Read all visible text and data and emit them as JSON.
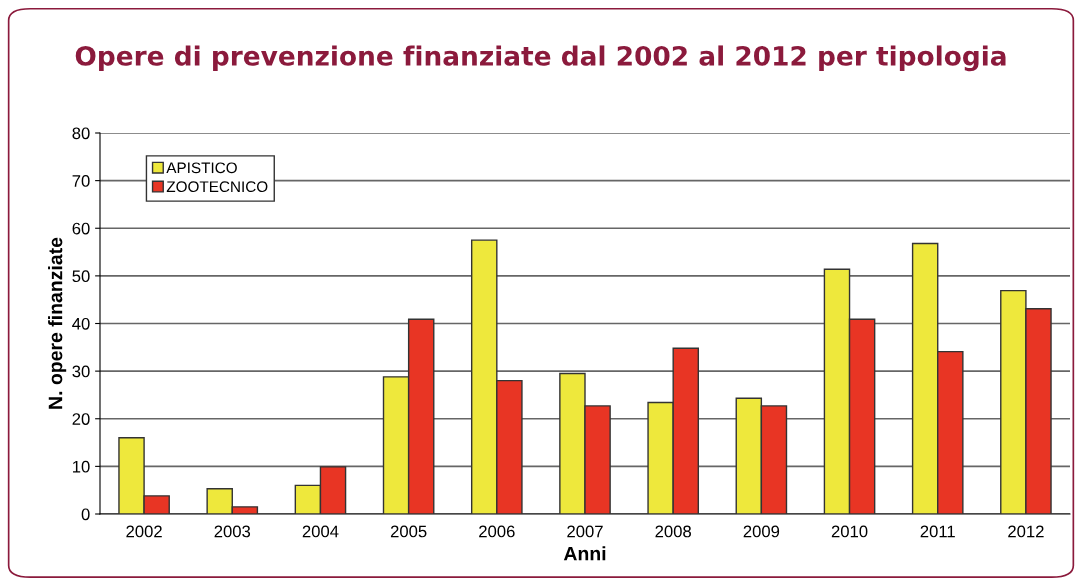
{
  "chart_data": {
    "type": "bar",
    "title": "Opere di prevenzione finanziate dal 2002 al 2012 per tipologia",
    "xlabel": "Anni",
    "ylabel": "N. opere finanziate",
    "categories": [
      "2002",
      "2003",
      "2004",
      "2005",
      "2006",
      "2007",
      "2008",
      "2009",
      "2010",
      "2011",
      "2012"
    ],
    "series": [
      {
        "name": "APISTICO",
        "color": "#eee83c",
        "values": [
          16,
          5.3,
          6,
          28.8,
          57.5,
          29.5,
          23.4,
          24.3,
          51.4,
          56.8,
          46.9
        ]
      },
      {
        "name": "ZOOTECNICO",
        "color": "#e83524",
        "values": [
          3.8,
          1.5,
          9.9,
          40.9,
          28,
          22.7,
          34.8,
          22.7,
          40.9,
          34.1,
          43.1
        ]
      }
    ],
    "ylim": [
      0,
      80
    ],
    "yticks": [
      0,
      10,
      20,
      30,
      40,
      50,
      60,
      70,
      80
    ],
    "grid": "y",
    "legend": "top left"
  }
}
